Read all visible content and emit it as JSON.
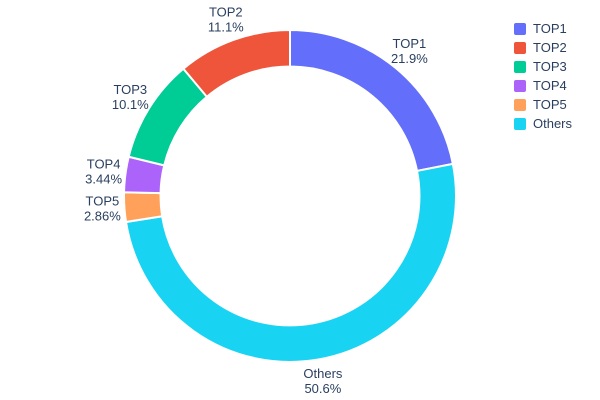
{
  "chart_data": {
    "type": "pie",
    "title": "",
    "hole": 0.78,
    "rotation_deg": -90,
    "direction": "clockwise",
    "background": "#ffffff",
    "text_color": "#2a3f5f",
    "slices": [
      {
        "label": "TOP1",
        "value": 21.9,
        "pct_label": "21.9%",
        "color": "#636efa"
      },
      {
        "label": "Others",
        "value": 50.6,
        "pct_label": "50.6%",
        "color": "#19d3f3"
      },
      {
        "label": "TOP5",
        "value": 2.86,
        "pct_label": "2.86%",
        "color": "#ffa15a"
      },
      {
        "label": "TOP4",
        "value": 3.44,
        "pct_label": "3.44%",
        "color": "#ab63fa"
      },
      {
        "label": "TOP3",
        "value": 10.1,
        "pct_label": "10.1%",
        "color": "#00cc96"
      },
      {
        "label": "TOP2",
        "value": 11.1,
        "pct_label": "11.1%",
        "color": "#ef553b"
      }
    ],
    "legend": {
      "position": "top-right",
      "items": [
        {
          "label": "TOP1",
          "color": "#636efa"
        },
        {
          "label": "TOP2",
          "color": "#ef553b"
        },
        {
          "label": "TOP3",
          "color": "#00cc96"
        },
        {
          "label": "TOP4",
          "color": "#ab63fa"
        },
        {
          "label": "TOP5",
          "color": "#ffa15a"
        },
        {
          "label": "Others",
          "color": "#19d3f3"
        }
      ]
    }
  }
}
